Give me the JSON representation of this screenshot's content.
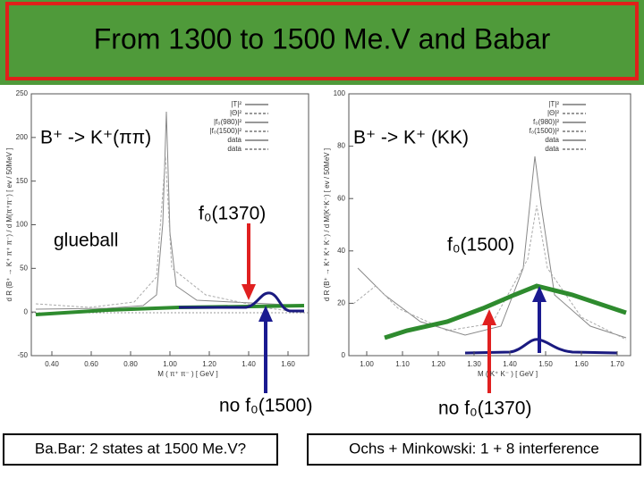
{
  "slide": {
    "title": "From 1300 to 1500 Me.V and Babar",
    "left_plot": {
      "yticks": [
        "250",
        "200",
        "150",
        "100",
        "50",
        "0",
        "-50"
      ],
      "xticks": [
        "0.40",
        "0.60",
        "0.80",
        "1.00",
        "1.20",
        "1.40",
        "1.60"
      ],
      "xlabel": "M ( π⁺ π⁻ ) [ GeV ]",
      "ylabel": "d R (B⁺ → K⁺ π⁺ π⁻) / d M(π⁺π⁻) [ ev / 50MeV ]",
      "legend": [
        "|T|²",
        "|Θ|²",
        "|f₀(980)|²",
        "|f₀(1500)|²",
        "data",
        "data"
      ]
    },
    "right_plot": {
      "yticks": [
        "100",
        "80",
        "60",
        "40",
        "20",
        "0"
      ],
      "xticks": [
        "1.00",
        "1.10",
        "1.20",
        "1.30",
        "1.40",
        "1.50",
        "1.60",
        "1.70"
      ],
      "xlabel": "M ( K⁺ K⁻ ) [ GeV ]",
      "ylabel": "d R (B⁺ → K⁺ K⁺ K⁻) / d M(K⁺K⁻) [ ev / 50MeV ]",
      "legend": [
        "|T|²",
        "|Θ|²",
        "f₀(980)|²",
        "f₀(1500)|²",
        "data",
        "data"
      ]
    },
    "labels": {
      "decay_pipi": "B⁺ -> K⁺(ππ)",
      "decay_kk": "B⁺ -> K⁺ (KK)",
      "f0_1370": "f₀(1370)",
      "glueball": "glueball",
      "f0_1500": "f₀(1500)",
      "no_f0_1500": "no f₀(1500)",
      "no_f0_1370": "no f₀(1370)"
    },
    "footer": {
      "left": "Ba.Bar: 2 states at 1500 Me.V?",
      "right": "Ochs + Minkowski: 1 + 8 interference"
    }
  }
}
